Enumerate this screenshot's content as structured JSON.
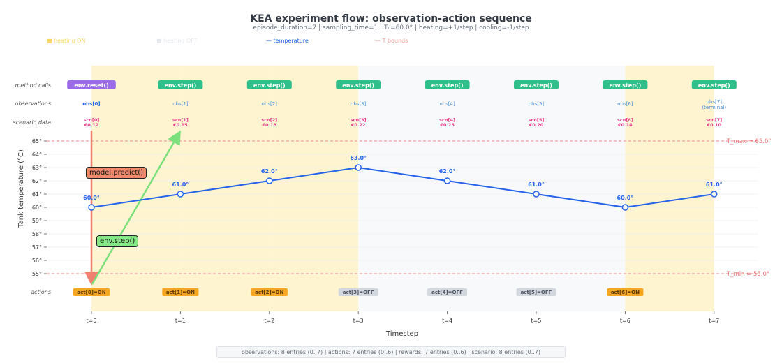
{
  "chart_data": {
    "type": "line",
    "title": "KEA experiment flow: observation-action sequence",
    "subtitle": "episode_duration=7  |  sampling_time=1  |  T₀=60.0°  |  heating=+1/step  |  cooling=-1/step",
    "xlabel": "Timestep",
    "ylabel": "Tank temperature (°C)",
    "ylim": [
      53.2,
      67.2
    ],
    "y_ticks": [
      55,
      56,
      57,
      58,
      59,
      60,
      61,
      62,
      63,
      64,
      65
    ],
    "x_ticks": [
      "t=0",
      "t=1",
      "t=2",
      "t=3",
      "t=4",
      "t=5",
      "t=6",
      "t=7"
    ],
    "series": [
      {
        "name": "temperature",
        "values": [
          60,
          61,
          62,
          63,
          62,
          61,
          60,
          61
        ],
        "labels": [
          "60.0°",
          "61.0°",
          "62.0°",
          "63.0°",
          "62.0°",
          "61.0°",
          "60.0°",
          "61.0°"
        ],
        "color": "#2563eb"
      }
    ],
    "thresholds": [
      {
        "value": 65,
        "label": "T_max = 65.0°",
        "color": "#ef8a8a"
      },
      {
        "value": 55,
        "label": "T_min = 55.0°",
        "color": "#ef8a8a"
      }
    ],
    "legend": [
      {
        "label": "■ heating ON",
        "color": "#fbd86b"
      },
      {
        "label": "■ heating OFF",
        "color": "#e6e9ee"
      },
      {
        "label": "— temperature",
        "color": "#2563eb"
      },
      {
        "label": "— T bounds",
        "color": "#f0a0a0"
      }
    ],
    "heating": [
      "ON",
      "ON",
      "ON",
      "OFF",
      "OFF",
      "OFF",
      "ON"
    ],
    "row_labels": {
      "method": "method calls",
      "obs": "observations",
      "scenario": "scenario data",
      "actions": "actions"
    },
    "method_calls": [
      "env.reset()",
      "env.step()",
      "env.step()",
      "env.step()",
      "env.step()",
      "env.step()",
      "env.step()",
      "env.step()"
    ],
    "observations": [
      "obs[0]",
      "obs[1]",
      "obs[2]",
      "obs[3]",
      "obs[4]",
      "obs[5]",
      "obs[6]",
      "obs[7]"
    ],
    "terminal_label": "(terminal)",
    "scenario": [
      {
        "name": "scn[0]",
        "value": "€0.12"
      },
      {
        "name": "scn[1]",
        "value": "€0.15"
      },
      {
        "name": "scn[2]",
        "value": "€0.18"
      },
      {
        "name": "scn[3]",
        "value": "€0.22"
      },
      {
        "name": "scn[4]",
        "value": "€0.25"
      },
      {
        "name": "scn[5]",
        "value": "€0.20"
      },
      {
        "name": "scn[6]",
        "value": "€0.14"
      },
      {
        "name": "scn[7]",
        "value": "€0.10"
      }
    ],
    "actions": [
      "act[0]=ON",
      "act[1]=ON",
      "act[2]=ON",
      "act[3]=OFF",
      "act[4]=OFF",
      "act[5]=OFF",
      "act[6]=ON"
    ],
    "annotations": [
      "model.predict()",
      "env.step()"
    ],
    "colors": {
      "heat_on_bg": "#fff4d0",
      "heat_off_bg": "#f8f9fa",
      "reset_badge": "#9b6be8",
      "step_badge": "#2fbf8a",
      "obs_text": "#4a90d9",
      "obs0_text": "#2563eb",
      "scenario_text": "#e83e8c",
      "act_on_bg": "#f5a623",
      "act_off_bg": "#d3d8df",
      "predict_arrow": "#f08070",
      "step_arrow": "#7be07b"
    }
  },
  "footer": "observations: 8 entries (0..7)  |  actions: 7 entries (0..6)  |  rewards: 7 entries (0..6)  |  scenario: 8 entries (0..7)"
}
